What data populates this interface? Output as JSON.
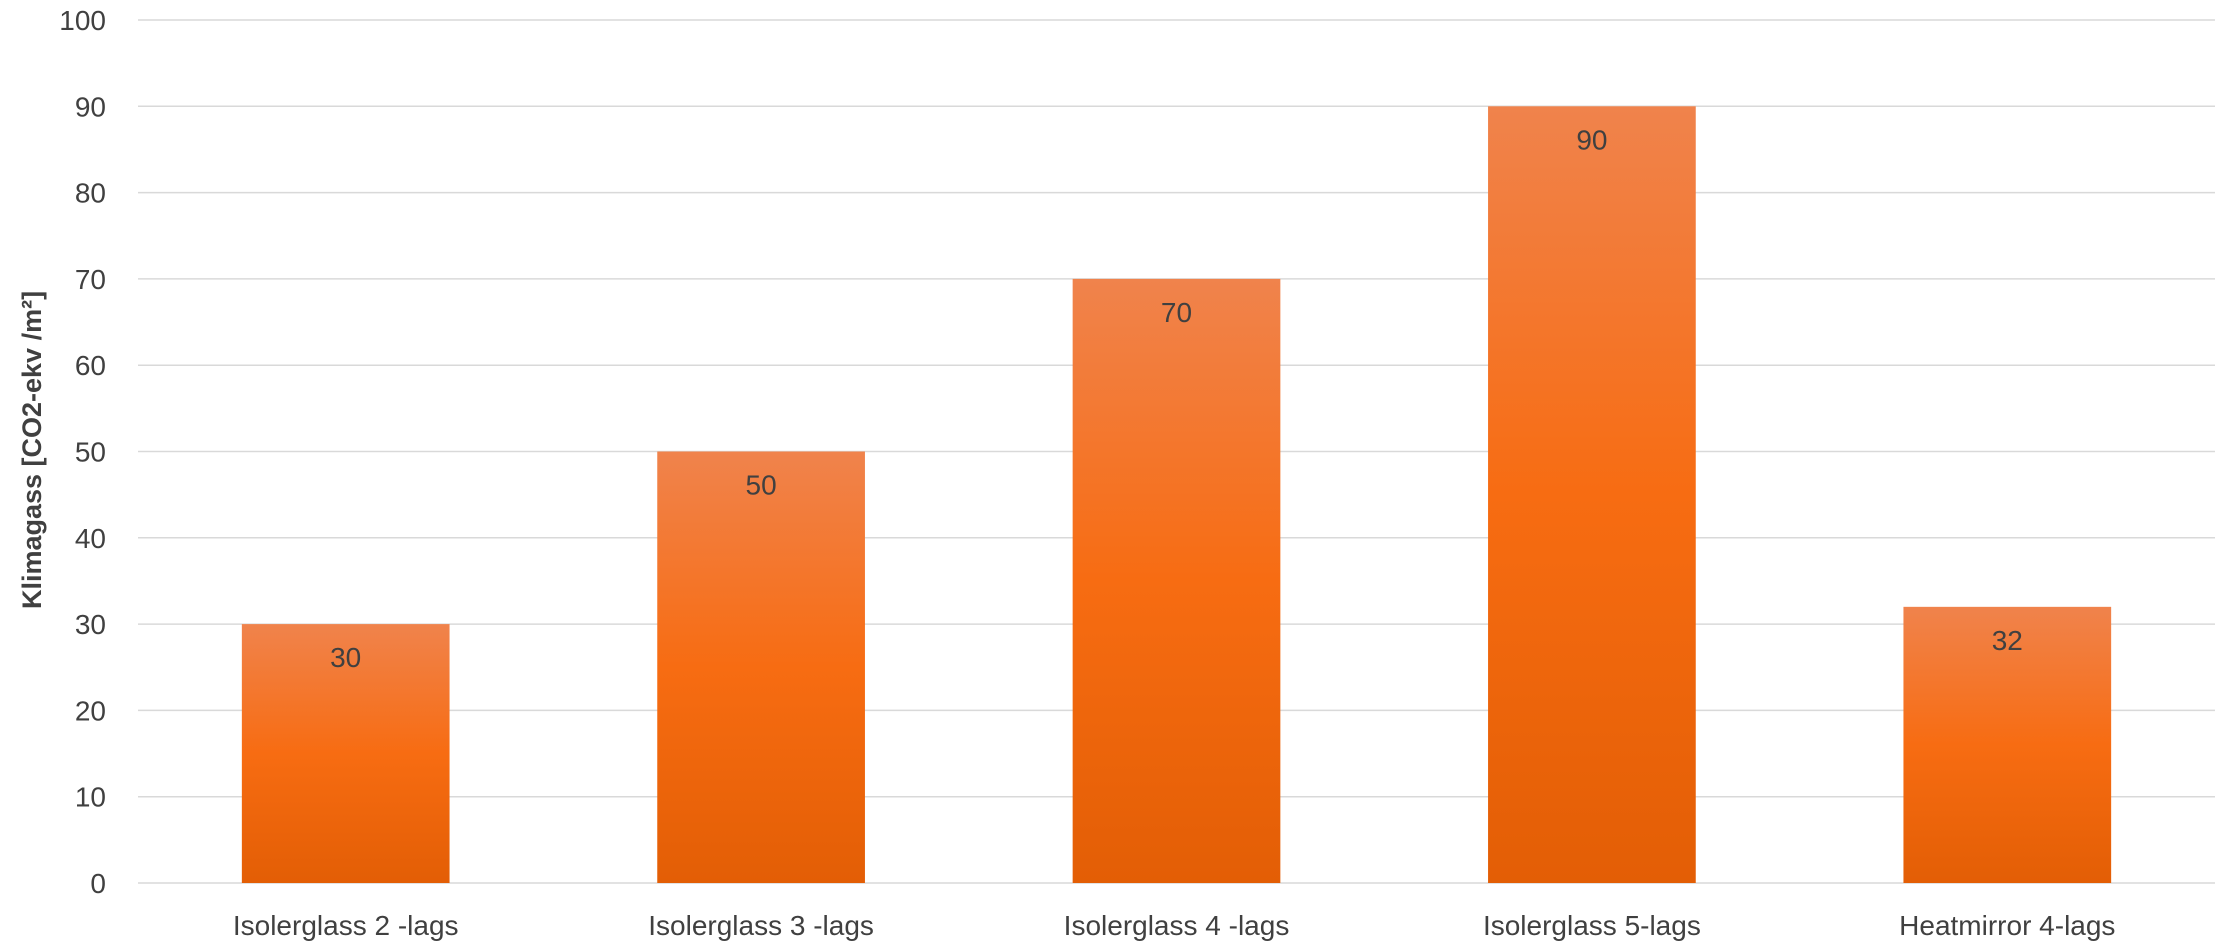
{
  "chart_data": {
    "type": "bar",
    "title": "",
    "xlabel": "",
    "ylabel": "Klimagass [CO2-ekv /m²]",
    "categories": [
      "Isolerglass 2 -lags",
      "Isolerglass 3 -lags",
      "Isolerglass 4 -lags",
      "Isolerglass 5-lags",
      "Heatmirror 4-lags"
    ],
    "values": [
      30,
      50,
      70,
      90,
      32
    ],
    "data_labels": [
      "30",
      "50",
      "70",
      "90",
      "32"
    ],
    "ylim": [
      0,
      100
    ],
    "yticks": [
      "0",
      "10",
      "20",
      "30",
      "40",
      "50",
      "60",
      "70",
      "80",
      "90",
      "100"
    ],
    "grid": true,
    "legend": "none",
    "colors": {
      "bar_top": "#f0834c",
      "bar_mid": "#f76c12",
      "bar_bottom": "#e35e05",
      "text": "#404040",
      "grid": "#d9d9d9"
    }
  }
}
